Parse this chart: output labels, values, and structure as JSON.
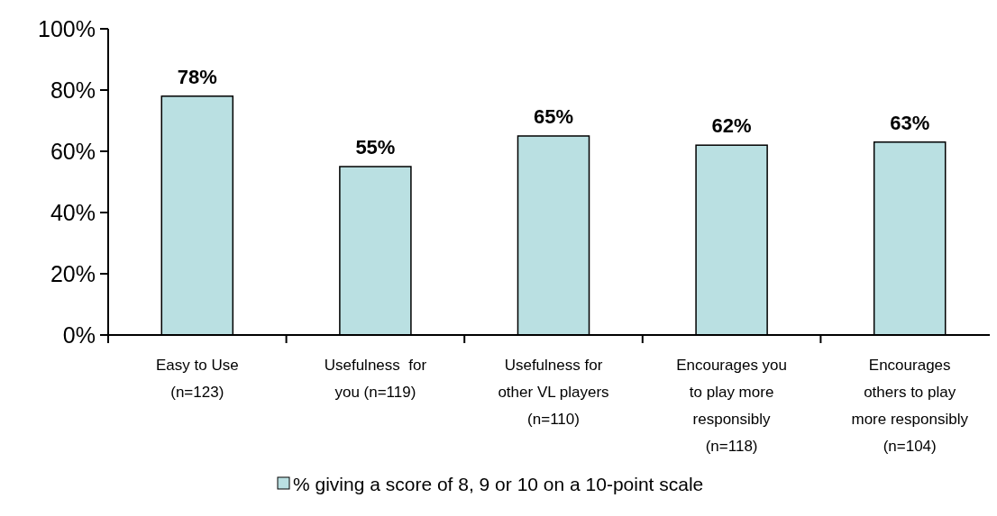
{
  "chart_data": {
    "type": "bar",
    "categories": [
      "Easy to Use\n(n=123)",
      "Usefulness  for\nyou (n=119)",
      "Usefulness for\nother VL players\n(n=110)",
      "Encourages you\nto play more\nresponsibly\n(n=118)",
      "Encourages\nothers to play\nmore responsibly\n(n=104)"
    ],
    "series": [
      {
        "name": "% giving a score of 8, 9 or 10 on a 10-point scale",
        "color": "#bae0e2",
        "values": [
          78,
          55,
          65,
          62,
          63
        ],
        "value_labels": [
          "78%",
          "55%",
          "65%",
          "62%",
          "63%"
        ]
      }
    ],
    "ylim": [
      0,
      100
    ],
    "yticks": [
      {
        "value": 0,
        "label": "0%"
      },
      {
        "value": 20,
        "label": "20%"
      },
      {
        "value": 40,
        "label": "40%"
      },
      {
        "value": 60,
        "label": "60%"
      },
      {
        "value": 80,
        "label": "80%"
      },
      {
        "value": 100,
        "label": "100%"
      }
    ],
    "grid": false,
    "legend": "bottom"
  }
}
